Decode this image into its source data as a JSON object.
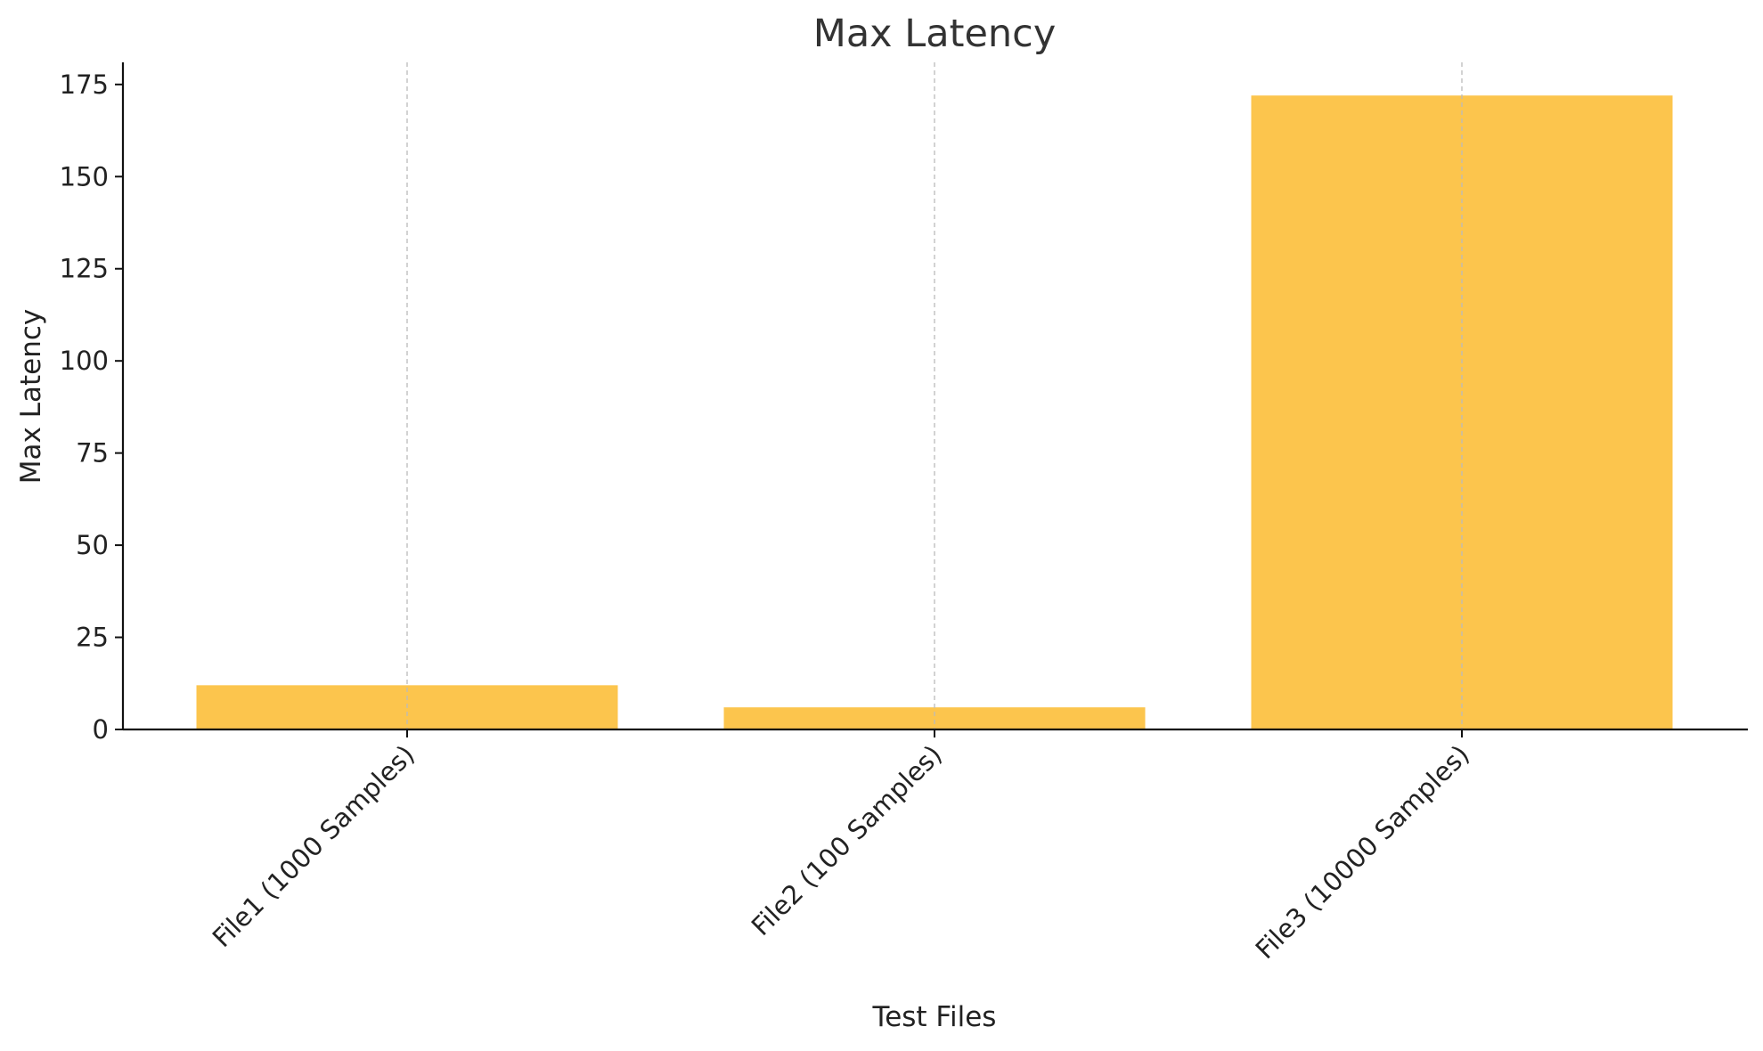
{
  "chart_data": {
    "type": "bar",
    "title": "Max Latency",
    "xlabel": "Test Files",
    "ylabel": "Max Latency",
    "categories": [
      "File1 (1000 Samples)",
      "File2 (100 Samples)",
      "File3 (10000 Samples)"
    ],
    "values": [
      12,
      6,
      172
    ],
    "ylim": [
      0,
      181
    ],
    "yticks": [
      0,
      25,
      50,
      75,
      100,
      125,
      150,
      175
    ],
    "bar_color": "#fcc54d",
    "grid": "x-axis dashed vertical lines",
    "legend": "none"
  }
}
